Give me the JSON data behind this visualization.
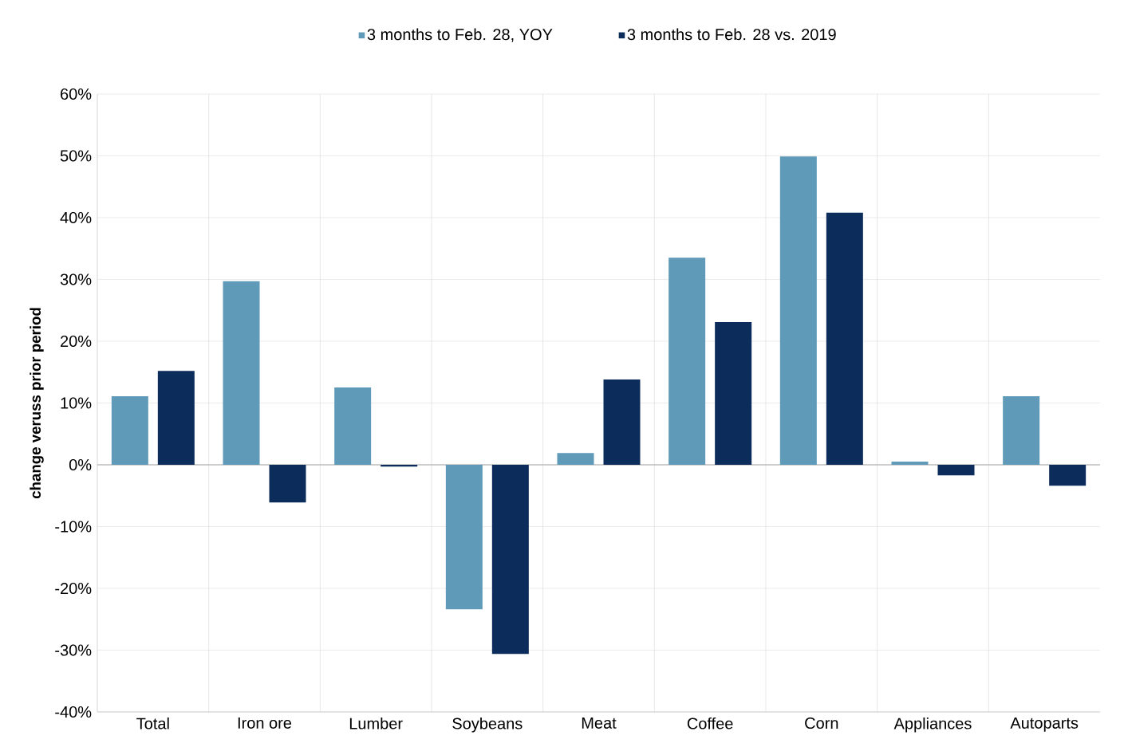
{
  "chart_data": {
    "type": "bar",
    "ylabel": "change veruss prior period",
    "categories": [
      "Total",
      "Iron ore",
      "Lumber",
      "Soybeans",
      "Meat",
      "Coffee",
      "Corn",
      "Appliances",
      "Autoparts"
    ],
    "series": [
      {
        "name": "3 months to Feb. 28, YOY",
        "color": "#5f9ab8",
        "values": [
          11.1,
          29.7,
          12.5,
          -23.4,
          1.9,
          33.5,
          49.9,
          0.5,
          11.1
        ]
      },
      {
        "name": "3 months to Feb. 28 vs. 2019",
        "color": "#0c2d5b",
        "values": [
          15.2,
          -6.1,
          -0.3,
          -30.6,
          13.8,
          23.1,
          40.8,
          -1.7,
          -3.4
        ]
      }
    ],
    "ylim": [
      -40,
      60
    ],
    "yticks": [
      {
        "value": -40,
        "label": "-40%"
      },
      {
        "value": -30,
        "label": "-30%"
      },
      {
        "value": -20,
        "label": "-20%"
      },
      {
        "value": -10,
        "label": "-10%"
      },
      {
        "value": 0,
        "label": "0%"
      },
      {
        "value": 10,
        "label": "10%"
      },
      {
        "value": 20,
        "label": "20%"
      },
      {
        "value": 30,
        "label": "30%"
      },
      {
        "value": 40,
        "label": "40%"
      },
      {
        "value": 50,
        "label": "50%"
      },
      {
        "value": 60,
        "label": "60%"
      }
    ],
    "grid": true,
    "legend": "top"
  }
}
